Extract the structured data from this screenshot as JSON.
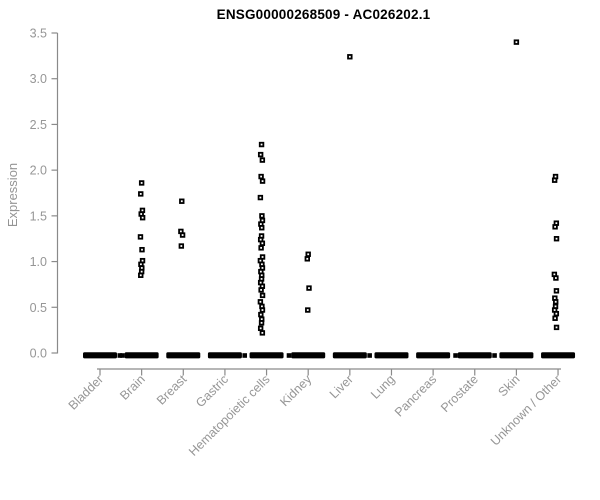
{
  "title": "ENSG00000268509 - AC026202.1",
  "chart_data": {
    "type": "scatter",
    "subtype": "strip-plot (expression per tissue)",
    "title": "ENSG00000268509 - AC026202.1",
    "xlabel": "",
    "ylabel": "Expression",
    "ylim": [
      0,
      3.5
    ],
    "yticks": [
      0.0,
      0.5,
      1.0,
      1.5,
      2.0,
      2.5,
      3.0,
      3.5
    ],
    "ytick_labels": [
      "0.0",
      "0.5",
      "1.0",
      "1.5",
      "2.0",
      "2.5",
      "3.0",
      "3.5"
    ],
    "grid": false,
    "legend": "none",
    "categories": [
      "Bladder",
      "Brain",
      "Breast",
      "Gastric",
      "Hematopoietic cells",
      "Kidney",
      "Liver",
      "Lung",
      "Pancreas",
      "Prostate",
      "Skin",
      "Unknown / Other"
    ],
    "zero_cluster_note": "every category shows a dense horizontal cluster of overlapping points at expression 0.0",
    "series": [
      {
        "name": "Bladder",
        "values": []
      },
      {
        "name": "Brain",
        "values": [
          1.86,
          1.74,
          1.56,
          1.52,
          1.48,
          1.27,
          1.13,
          1.01,
          0.97,
          0.93,
          0.89,
          0.85
        ]
      },
      {
        "name": "Breast",
        "values": [
          1.66,
          1.33,
          1.29,
          1.17
        ]
      },
      {
        "name": "Gastric",
        "values": []
      },
      {
        "name": "Hematopoietic cells",
        "values": [
          2.28,
          2.17,
          2.11,
          1.93,
          1.88,
          1.7,
          1.5,
          1.45,
          1.41,
          1.37,
          1.28,
          1.24,
          1.2,
          1.15,
          1.05,
          1.01,
          0.97,
          0.93,
          0.89,
          0.85,
          0.81,
          0.77,
          0.73,
          0.69,
          0.63,
          0.56,
          0.51,
          0.47,
          0.42,
          0.37,
          0.33,
          0.27,
          0.22
        ]
      },
      {
        "name": "Kidney",
        "values": [
          1.08,
          1.03,
          0.71,
          0.47
        ]
      },
      {
        "name": "Liver",
        "values": [
          3.24
        ]
      },
      {
        "name": "Lung",
        "values": []
      },
      {
        "name": "Pancreas",
        "values": []
      },
      {
        "name": "Prostate",
        "values": []
      },
      {
        "name": "Skin",
        "values": [
          3.4
        ]
      },
      {
        "name": "Unknown / Other",
        "values": [
          1.93,
          1.89,
          1.42,
          1.38,
          1.25,
          0.86,
          0.82,
          0.68,
          0.6,
          0.56,
          0.51,
          0.47,
          0.43,
          0.38,
          0.28
        ]
      }
    ]
  },
  "colors": {
    "background": "#ffffff",
    "point": "#000000",
    "point_center": "#ffffff",
    "axis_line": "#8a8a8a",
    "tick_label": "#969696",
    "title_text": "#000000"
  }
}
